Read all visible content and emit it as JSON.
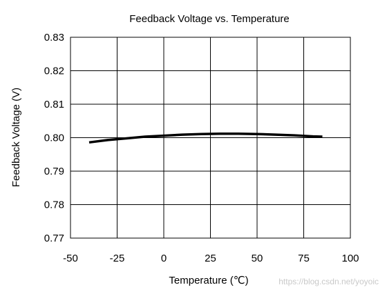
{
  "chart_data": {
    "type": "line",
    "title": "Feedback Voltage vs. Temperature",
    "xlabel": "Temperature (℃)",
    "ylabel": "Feedback Voltage (V)",
    "xlim": [
      -50,
      100
    ],
    "ylim": [
      0.77,
      0.83
    ],
    "xticks": [
      -50,
      -25,
      0,
      25,
      50,
      75,
      100
    ],
    "yticks": [
      0.77,
      0.78,
      0.79,
      0.8,
      0.81,
      0.82,
      0.83
    ],
    "xtick_labels": [
      "-50",
      "-25",
      "0",
      "25",
      "50",
      "75",
      "100"
    ],
    "ytick_labels": [
      "0.77",
      "0.78",
      "0.79",
      "0.80",
      "0.81",
      "0.82",
      "0.83"
    ],
    "grid": true,
    "series": [
      {
        "x": [
          -40,
          -30,
          -20,
          -10,
          0,
          10,
          20,
          30,
          40,
          50,
          60,
          70,
          80,
          85
        ],
        "y": [
          0.7986,
          0.7993,
          0.7998,
          0.8003,
          0.8006,
          0.8009,
          0.8011,
          0.8012,
          0.8012,
          0.8011,
          0.8009,
          0.8007,
          0.8004,
          0.8003
        ]
      }
    ],
    "line_color": "#000000"
  },
  "watermark": "https://blog.csdn.net/yoyoic"
}
